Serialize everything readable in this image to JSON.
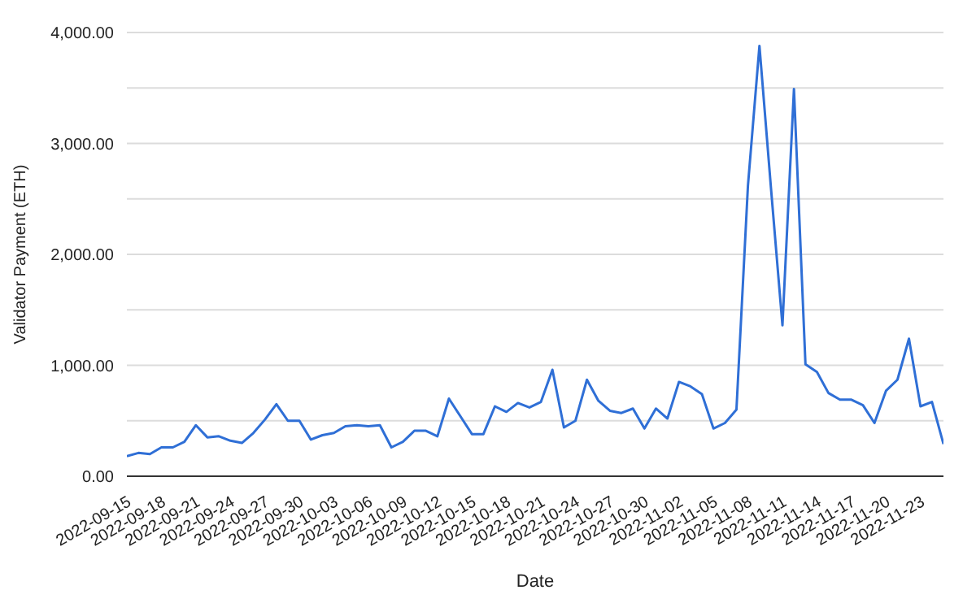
{
  "chart_data": {
    "type": "line",
    "xlabel": "Date",
    "ylabel": "Validator Payment (ETH)",
    "x": [
      "2022-09-15",
      "2022-09-16",
      "2022-09-17",
      "2022-09-18",
      "2022-09-19",
      "2022-09-20",
      "2022-09-21",
      "2022-09-22",
      "2022-09-23",
      "2022-09-24",
      "2022-09-25",
      "2022-09-26",
      "2022-09-27",
      "2022-09-28",
      "2022-09-29",
      "2022-09-30",
      "2022-10-01",
      "2022-10-02",
      "2022-10-03",
      "2022-10-04",
      "2022-10-05",
      "2022-10-06",
      "2022-10-07",
      "2022-10-08",
      "2022-10-09",
      "2022-10-10",
      "2022-10-11",
      "2022-10-12",
      "2022-10-13",
      "2022-10-14",
      "2022-10-15",
      "2022-10-16",
      "2022-10-17",
      "2022-10-18",
      "2022-10-19",
      "2022-10-20",
      "2022-10-21",
      "2022-10-22",
      "2022-10-23",
      "2022-10-24",
      "2022-10-25",
      "2022-10-26",
      "2022-10-27",
      "2022-10-28",
      "2022-10-29",
      "2022-10-30",
      "2022-10-31",
      "2022-11-01",
      "2022-11-02",
      "2022-11-03",
      "2022-11-04",
      "2022-11-05",
      "2022-11-06",
      "2022-11-07",
      "2022-11-08",
      "2022-11-09",
      "2022-11-10",
      "2022-11-11",
      "2022-11-12",
      "2022-11-13",
      "2022-11-14",
      "2022-11-15",
      "2022-11-16",
      "2022-11-17",
      "2022-11-18",
      "2022-11-19",
      "2022-11-20",
      "2022-11-21",
      "2022-11-22",
      "2022-11-23",
      "2022-11-24",
      "2022-11-25"
    ],
    "series": [
      {
        "color": "#2f6fd6",
        "values": [
          180,
          210,
          200,
          260,
          260,
          310,
          460,
          350,
          360,
          320,
          300,
          390,
          510,
          650,
          500,
          500,
          330,
          370,
          390,
          450,
          460,
          450,
          460,
          260,
          310,
          410,
          410,
          360,
          700,
          540,
          380,
          380,
          630,
          580,
          660,
          620,
          670,
          960,
          440,
          500,
          870,
          680,
          590,
          570,
          610,
          430,
          610,
          520,
          850,
          810,
          740,
          430,
          480,
          600,
          2620,
          3880,
          2600,
          1360,
          3490,
          1010,
          940,
          750,
          690,
          690,
          640,
          480,
          770,
          870,
          1240,
          630,
          670,
          290
        ]
      }
    ],
    "xlim": [
      "2022-09-15",
      "2022-11-25"
    ],
    "xticks": [
      "2022-09-15",
      "2022-09-18",
      "2022-09-21",
      "2022-09-24",
      "2022-09-27",
      "2022-09-30",
      "2022-10-03",
      "2022-10-06",
      "2022-10-09",
      "2022-10-12",
      "2022-10-15",
      "2022-10-18",
      "2022-10-21",
      "2022-10-24",
      "2022-10-27",
      "2022-10-30",
      "2022-11-02",
      "2022-11-05",
      "2022-11-08",
      "2022-11-11",
      "2022-11-14",
      "2022-11-17",
      "2022-11-20",
      "2022-11-23"
    ],
    "ylim": [
      0,
      4000
    ],
    "yticks": [
      {
        "value": 0,
        "label": "0.00"
      },
      {
        "value": 500,
        "label": null
      },
      {
        "value": 1000,
        "label": "1,000.00"
      },
      {
        "value": 1500,
        "label": null
      },
      {
        "value": 2000,
        "label": "2,000.00"
      },
      {
        "value": 2500,
        "label": null
      },
      {
        "value": 3000,
        "label": "3,000.00"
      },
      {
        "value": 3500,
        "label": null
      },
      {
        "value": 4000,
        "label": "4,000.00"
      }
    ],
    "grid": "y",
    "marker": "none",
    "line_style": "solid"
  }
}
